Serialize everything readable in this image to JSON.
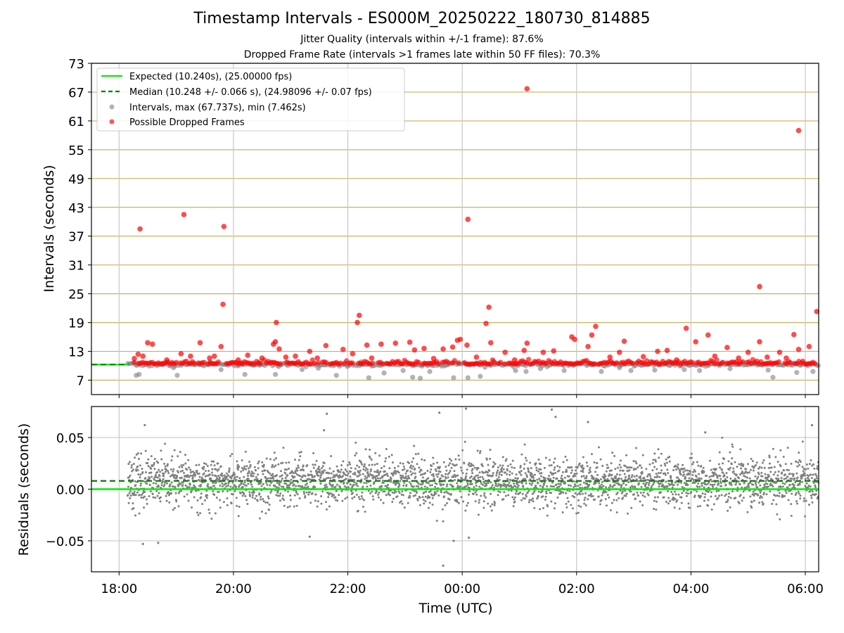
{
  "page": {
    "title": "Timestamp Intervals - ES000M_20250222_180730_814885",
    "subtitle_1": "Jitter Quality (intervals within +/-1 frame): 87.6%",
    "subtitle_2": "Dropped Frame Rate (intervals >1 frames late within 50 FF files): 70.3%"
  },
  "colors": {
    "expected": "#00ee00",
    "median": "#008000",
    "intervals": "#808080",
    "dropped": "#ff0000",
    "hgrid_top": "#c8b060",
    "vgrid": "#c8c8c8"
  },
  "chart_data": [
    {
      "type": "scatter",
      "panel": "intervals",
      "xlabel": "",
      "ylabel": "Intervals (seconds)",
      "x_type": "time",
      "xlim": [
        "17:31",
        "06:14"
      ],
      "x_ticks": [
        "18:00",
        "20:00",
        "22:00",
        "00:00",
        "02:00",
        "04:00",
        "06:00"
      ],
      "ylim": [
        4.0,
        73.0
      ],
      "y_ticks": [
        7,
        13,
        19,
        25,
        31,
        37,
        43,
        49,
        55,
        61,
        67,
        73
      ],
      "grid": true,
      "legend_position": "top-left",
      "legend": [
        "Expected (10.240s), (25.00000 fps)",
        "Median (10.248 +/- 0.066 s), (24.98096 +/- 0.07 fps)",
        "Intervals, max (67.737s), min (7.462s)",
        "Possible Dropped Frames"
      ],
      "reference_lines": {
        "expected": 10.24,
        "median": 10.248
      },
      "series": [
        {
          "name": "Intervals, max (67.737s), min (7.462s)",
          "color": "#808080",
          "points": [
            [
              "18:18",
              8.0
            ],
            [
              "18:21",
              8.2
            ],
            [
              "18:46",
              10.6
            ],
            [
              "18:57",
              9.6
            ],
            [
              "19:01",
              8.0
            ],
            [
              "19:18",
              10.5
            ],
            [
              "19:35",
              10.8
            ],
            [
              "19:47",
              9.2
            ],
            [
              "20:09",
              10.6
            ],
            [
              "20:12",
              8.2
            ],
            [
              "20:28",
              10.9
            ],
            [
              "20:44",
              8.2
            ],
            [
              "20:57",
              10.7
            ],
            [
              "21:12",
              9.2
            ],
            [
              "21:29",
              9.5
            ],
            [
              "21:48",
              8.0
            ],
            [
              "22:14",
              10.8
            ],
            [
              "22:22",
              7.5
            ],
            [
              "22:38",
              8.5
            ],
            [
              "22:58",
              9.0
            ],
            [
              "23:08",
              7.6
            ],
            [
              "23:16",
              7.4
            ],
            [
              "23:26",
              8.8
            ],
            [
              "23:51",
              7.5
            ],
            [
              "00:06",
              7.5
            ],
            [
              "00:19",
              7.8
            ],
            [
              "00:24",
              9.7
            ],
            [
              "00:33",
              10.9
            ],
            [
              "00:56",
              9.0
            ],
            [
              "01:07",
              8.8
            ],
            [
              "01:22",
              9.4
            ],
            [
              "01:47",
              9.0
            ],
            [
              "02:26",
              8.8
            ],
            [
              "02:45",
              9.6
            ],
            [
              "02:57",
              9.0
            ],
            [
              "03:22",
              9.1
            ],
            [
              "03:40",
              10.6
            ],
            [
              "03:53",
              9.2
            ],
            [
              "04:09",
              9.0
            ],
            [
              "04:41",
              9.4
            ],
            [
              "05:07",
              10.4
            ],
            [
              "05:21",
              9.1
            ],
            [
              "05:26",
              7.6
            ],
            [
              "05:51",
              8.6
            ],
            [
              "06:08",
              8.8
            ]
          ]
        },
        {
          "name": "Possible Dropped Frames",
          "color": "#ff0000",
          "points": [
            [
              "18:22",
              38.5
            ],
            [
              "19:08",
              41.5
            ],
            [
              "19:50",
              39.0
            ],
            [
              "19:49",
              22.8
            ],
            [
              "19:47",
              14.0
            ],
            [
              "18:16",
              11.5
            ],
            [
              "18:20",
              12.4
            ],
            [
              "18:25",
              12.0
            ],
            [
              "18:30",
              14.8
            ],
            [
              "18:35",
              14.5
            ],
            [
              "18:50",
              11.2
            ],
            [
              "19:05",
              12.5
            ],
            [
              "19:15",
              12.0
            ],
            [
              "19:25",
              14.8
            ],
            [
              "19:35",
              11.6
            ],
            [
              "19:40",
              12.0
            ],
            [
              "20:05",
              11.2
            ],
            [
              "20:15",
              12.2
            ],
            [
              "20:30",
              11.6
            ],
            [
              "20:42",
              14.5
            ],
            [
              "20:44",
              15.0
            ],
            [
              "20:45",
              19.0
            ],
            [
              "20:48",
              13.5
            ],
            [
              "20:55",
              11.8
            ],
            [
              "21:05",
              12.0
            ],
            [
              "21:20",
              13.0
            ],
            [
              "21:28",
              11.6
            ],
            [
              "21:37",
              14.2
            ],
            [
              "21:55",
              13.4
            ],
            [
              "22:05",
              12.5
            ],
            [
              "22:10",
              19.0
            ],
            [
              "22:12",
              20.5
            ],
            [
              "22:20",
              14.3
            ],
            [
              "22:25",
              11.6
            ],
            [
              "22:35",
              14.5
            ],
            [
              "22:50",
              14.7
            ],
            [
              "23:05",
              14.9
            ],
            [
              "23:10",
              13.3
            ],
            [
              "23:20",
              13.6
            ],
            [
              "23:30",
              11.5
            ],
            [
              "23:40",
              13.5
            ],
            [
              "23:50",
              13.9
            ],
            [
              "23:55",
              15.3
            ],
            [
              "23:58",
              15.5
            ],
            [
              "00:05",
              14.3
            ],
            [
              "00:15",
              11.8
            ],
            [
              "00:25",
              18.8
            ],
            [
              "00:28",
              22.2
            ],
            [
              "00:30",
              14.8
            ],
            [
              "00:45",
              12.8
            ],
            [
              "00:55",
              11.2
            ],
            [
              "01:05",
              13.2
            ],
            [
              "01:08",
              14.7
            ],
            [
              "01:25",
              12.8
            ],
            [
              "01:36",
              13.1
            ],
            [
              "01:55",
              16.0
            ],
            [
              "01:58",
              15.5
            ],
            [
              "02:12",
              14.0
            ],
            [
              "02:16",
              16.4
            ],
            [
              "02:20",
              18.2
            ],
            [
              "02:35",
              11.8
            ],
            [
              "02:45",
              12.8
            ],
            [
              "02:50",
              15.1
            ],
            [
              "03:10",
              11.9
            ],
            [
              "03:25",
              13.0
            ],
            [
              "03:35",
              13.2
            ],
            [
              "03:45",
              11.2
            ],
            [
              "03:55",
              17.8
            ],
            [
              "04:05",
              15.0
            ],
            [
              "04:18",
              16.4
            ],
            [
              "04:25",
              12.0
            ],
            [
              "04:38",
              13.8
            ],
            [
              "04:50",
              11.6
            ],
            [
              "05:00",
              12.8
            ],
            [
              "05:12",
              15.0
            ],
            [
              "05:20",
              11.8
            ],
            [
              "05:33",
              12.8
            ],
            [
              "05:40",
              11.6
            ],
            [
              "05:48",
              16.5
            ],
            [
              "05:53",
              13.4
            ],
            [
              "06:04",
              14.0
            ],
            [
              "06:12",
              21.3
            ],
            [
              "05:12",
              26.5
            ],
            [
              "05:53",
              59.0
            ],
            [
              "00:06",
              40.5
            ],
            [
              "01:08",
              67.7
            ]
          ]
        }
      ]
    },
    {
      "type": "scatter",
      "panel": "residuals",
      "xlabel": "Time (UTC)",
      "ylabel": "Residuals (seconds)",
      "x_type": "time",
      "xlim": [
        "17:31",
        "06:14"
      ],
      "x_ticks": [
        "18:00",
        "20:00",
        "22:00",
        "00:00",
        "02:00",
        "04:00",
        "06:00"
      ],
      "ylim": [
        -0.08,
        0.08
      ],
      "y_ticks": [
        -0.05,
        0.0,
        0.05
      ],
      "y_tick_labels": [
        "−0.05",
        "0.00",
        "0.05"
      ],
      "grid": true,
      "reference_lines": {
        "expected": 0.0,
        "median": 0.008
      },
      "series": [
        {
          "name": "Residuals",
          "color": "#808080",
          "summary": {
            "count_approx": 3000,
            "center": 0.007,
            "spread_sd": 0.012
          },
          "outliers": [
            [
              "18:25",
              -0.053
            ],
            [
              "18:41",
              -0.052
            ],
            [
              "21:38",
              0.073
            ],
            [
              "23:36",
              0.074
            ],
            [
              "23:40",
              -0.074
            ],
            [
              "23:51",
              -0.05
            ],
            [
              "00:04",
              0.078
            ],
            [
              "01:34",
              0.077
            ],
            [
              "01:38",
              0.07
            ],
            [
              "02:12",
              0.065
            ],
            [
              "21:20",
              -0.046
            ],
            [
              "18:27",
              0.062
            ],
            [
              "06:07",
              0.062
            ],
            [
              "04:15",
              0.055
            ],
            [
              "21:35",
              0.057
            ],
            [
              "00:07",
              -0.047
            ]
          ]
        }
      ]
    }
  ]
}
